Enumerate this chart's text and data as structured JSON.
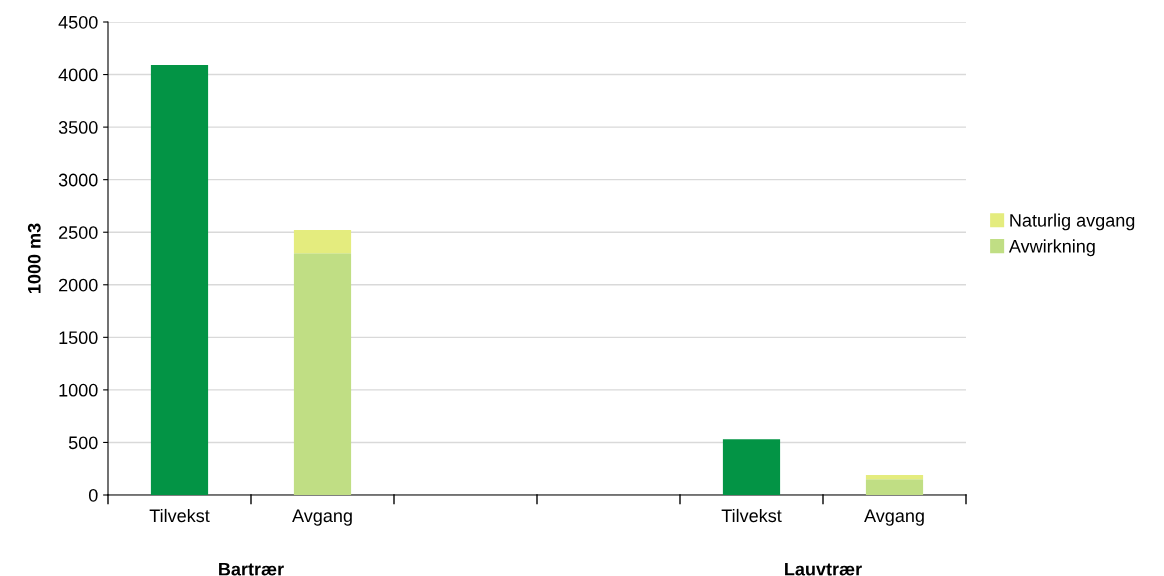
{
  "chart_data": {
    "type": "bar",
    "stacked": true,
    "ylabel": "1000 m3",
    "categories": [
      "Tilvekst",
      "Avgang",
      null,
      null,
      "Tilvekst",
      "Avgang"
    ],
    "series": [
      {
        "color": "#039445",
        "values": [
          4090,
          null,
          null,
          null,
          530,
          null
        ]
      },
      {
        "name": "Avwirkning",
        "color": "#c0de84",
        "values": [
          null,
          2300,
          null,
          null,
          null,
          150
        ]
      },
      {
        "name": "Naturlig avgang",
        "color": "#e4ec7e",
        "values": [
          null,
          220,
          null,
          null,
          null,
          40
        ]
      }
    ],
    "ylim": [
      0,
      4500
    ],
    "yticks": [
      0,
      500,
      1000,
      1500,
      2000,
      2500,
      3000,
      3500,
      4000,
      4500
    ],
    "grid": "y",
    "legend": "right",
    "annotations": [
      "Bartrær",
      "Lauvtrær"
    ]
  }
}
